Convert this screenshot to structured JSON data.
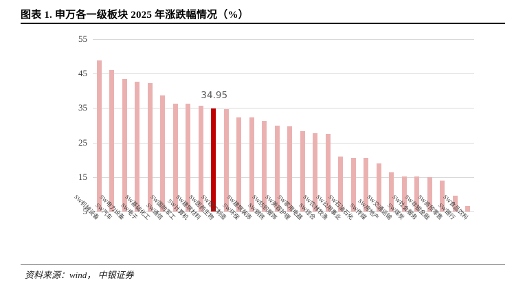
{
  "header": {
    "title": "图表 1. 申万各一级板块 2025 年涨跌幅情况（%）"
  },
  "footer": {
    "source": "资料来源：wind， 中银证券"
  },
  "colors": {
    "bar": "#ebb1b1",
    "highlight": "#c00000",
    "gridline": "#d9d9d9",
    "axis_text": "#404040",
    "data_label": "#595959"
  },
  "chart_data": {
    "type": "bar",
    "title": "申万各一级板块 2025 年涨跌幅情况（%）",
    "xlabel": "",
    "ylabel": "",
    "ylim": [
      5,
      55
    ],
    "yticks": [
      5,
      15,
      25,
      35,
      45,
      55
    ],
    "grid": "horizontal",
    "legend_position": "none",
    "categories": [
      "SW机械设备",
      "SW汽车",
      "SW电力设备",
      "SW电子",
      "SW基础化工",
      "SW通信",
      "SW国防军工",
      "SW计算机",
      "SW建筑材料",
      "SW医药生物",
      "SW轻工制造",
      "SW环保",
      "SW建筑装饰",
      "SW钢铁",
      "SW纺织服饰",
      "SW美容护理",
      "SW家用电器",
      "SW综合",
      "SW农林牧渔",
      "SW公用事业",
      "SW石油石化",
      "SW传媒",
      "SW房地产",
      "SW交通运输",
      "SW煤炭",
      "SW社会服务",
      "SW非银金融",
      "SW商贸零售",
      "SW银行",
      "SW食品饮料"
    ],
    "values": [
      48.9,
      46.1,
      43.5,
      42.7,
      42.2,
      38.6,
      36.3,
      36.2,
      35.7,
      34.95,
      34.7,
      32.2,
      32.2,
      31.3,
      29.9,
      29.7,
      28.3,
      27.8,
      27.5,
      21.0,
      20.6,
      20.5,
      19.0,
      16.4,
      15.1,
      15.1,
      15.0,
      13.9,
      9.5,
      6.6
    ],
    "highlight": {
      "index": 9,
      "category": "SW医药生物",
      "value": 34.95,
      "label": "34.95",
      "color": "#c00000"
    }
  }
}
